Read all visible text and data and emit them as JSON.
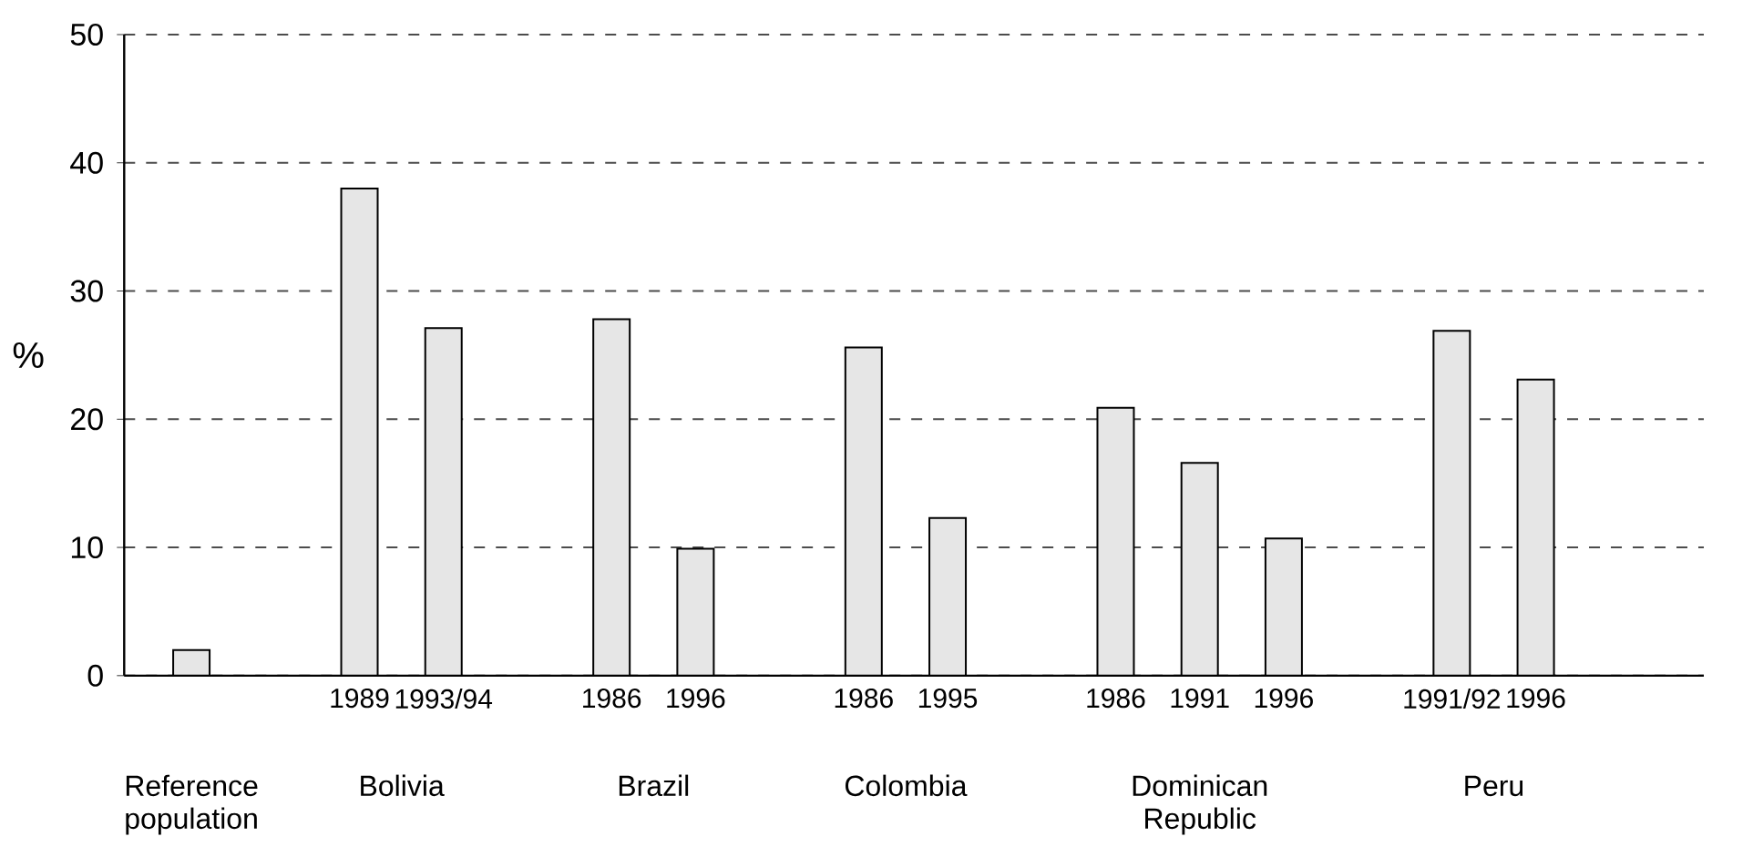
{
  "chart_data": {
    "type": "bar",
    "ylabel": "%",
    "categories": [
      null,
      null,
      "1989",
      "1993/94",
      null,
      "1986",
      "1996",
      null,
      "1986",
      "1995",
      null,
      "1986",
      "1991",
      "1996",
      null,
      "1991/92",
      "1996"
    ],
    "values": [
      2,
      null,
      38.0,
      27.1,
      null,
      27.8,
      9.9,
      null,
      25.6,
      12.3,
      null,
      20.9,
      16.6,
      10.7,
      null,
      26.9,
      23.1
    ],
    "color": "#e6e6e6",
    "ylim": [
      0,
      50
    ],
    "yticks": [
      0,
      10,
      20,
      30,
      40,
      50
    ],
    "grid": "y",
    "annotations": [
      "Reference population",
      "Bolivia",
      "Brazil",
      "Colombia",
      "Dominican Republic",
      "Peru"
    ]
  }
}
